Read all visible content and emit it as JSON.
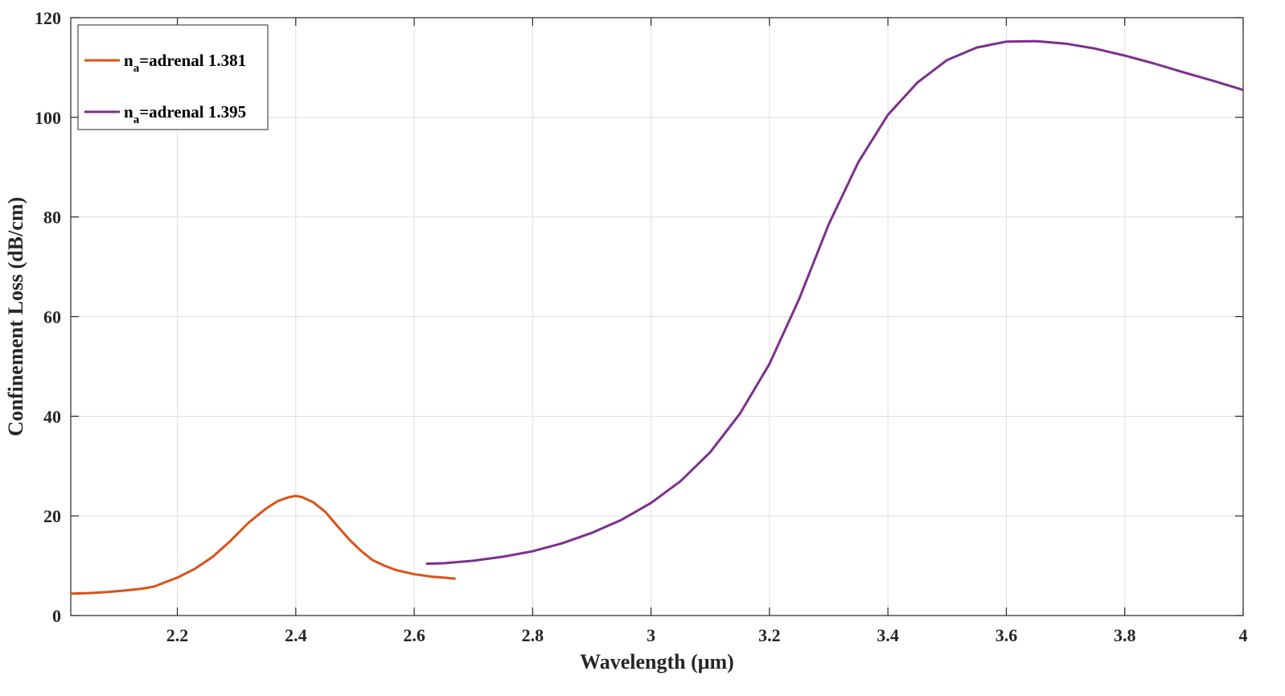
{
  "chart_data": {
    "type": "line",
    "title": "",
    "xlabel": "Wavelength (μm)",
    "ylabel": "Confinement Loss (dB/cm)",
    "xlim": [
      2.02,
      4.0
    ],
    "ylim": [
      0,
      120
    ],
    "xticks": [
      2.2,
      2.4,
      2.6,
      2.8,
      3.0,
      3.2,
      3.4,
      3.6,
      3.8,
      4.0
    ],
    "xtick_labels": [
      "2.2",
      "2.4",
      "2.6",
      "2.8",
      "3",
      "3.2",
      "3.4",
      "3.6",
      "3.8",
      "4"
    ],
    "yticks": [
      0,
      20,
      40,
      60,
      80,
      100,
      120
    ],
    "ytick_labels": [
      "0",
      "20",
      "40",
      "60",
      "80",
      "100",
      "120"
    ],
    "grid": true,
    "legend_position": "top-left",
    "series": [
      {
        "name": "n",
        "name_sub": "a",
        "name_rest": "=adrenal 1.381",
        "color": "#D95319",
        "x": [
          2.02,
          2.05,
          2.08,
          2.11,
          2.14,
          2.16,
          2.2,
          2.23,
          2.26,
          2.29,
          2.32,
          2.35,
          2.37,
          2.39,
          2.4,
          2.41,
          2.43,
          2.45,
          2.47,
          2.49,
          2.51,
          2.53,
          2.55,
          2.57,
          2.6,
          2.63,
          2.65,
          2.67
        ],
        "y": [
          4.4,
          4.5,
          4.7,
          5.0,
          5.4,
          5.8,
          7.6,
          9.4,
          11.8,
          15.0,
          18.6,
          21.5,
          23.0,
          23.8,
          24.0,
          23.8,
          22.7,
          20.8,
          18.0,
          15.3,
          13.0,
          11.1,
          10.0,
          9.1,
          8.3,
          7.8,
          7.6,
          7.4
        ]
      },
      {
        "name": "n",
        "name_sub": "a",
        "name_rest": "=adrenal 1.395",
        "color": "#7E2F8E",
        "x": [
          2.62,
          2.65,
          2.7,
          2.75,
          2.8,
          2.85,
          2.9,
          2.95,
          3.0,
          3.05,
          3.1,
          3.15,
          3.2,
          3.25,
          3.3,
          3.35,
          3.4,
          3.45,
          3.5,
          3.55,
          3.6,
          3.65,
          3.7,
          3.75,
          3.8,
          3.85,
          3.9,
          3.95,
          4.0
        ],
        "y": [
          10.4,
          10.5,
          11.0,
          11.8,
          12.9,
          14.5,
          16.6,
          19.2,
          22.6,
          27.0,
          32.8,
          40.5,
          50.5,
          63.5,
          78.5,
          91.0,
          100.5,
          107.0,
          111.5,
          114.0,
          115.2,
          115.3,
          114.8,
          113.8,
          112.4,
          110.8,
          109.0,
          107.3,
          105.5
        ]
      }
    ]
  }
}
